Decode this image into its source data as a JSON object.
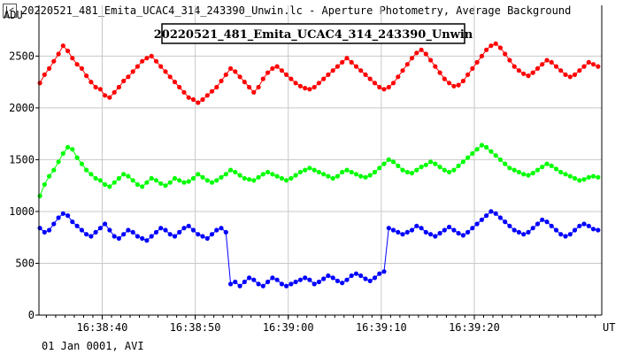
{
  "window": {
    "title": "20220521_481_Emita_UCAC4_314_243390_Unwin.lc - Aperture Photometry, Average Background"
  },
  "footer": {
    "text": "01 Jan 0001, AVI"
  },
  "chart_data": {
    "type": "line",
    "title": "20220521_481_Emita_UCAC4_314_243390_Unwin",
    "ylabel": "ADU",
    "xlabel": "UT",
    "ylim": [
      0,
      2990
    ],
    "y_ticks": [
      0,
      500,
      1000,
      1500,
      2000,
      2500
    ],
    "x_ticks": [
      "16:38:40",
      "16:38:50",
      "16:39:00",
      "16:39:10",
      "16:39:20"
    ],
    "x_ticks_sec": [
      40,
      50,
      60,
      70,
      80
    ],
    "xlim_sec": [
      33.2,
      93.7
    ],
    "grid": true,
    "colors": {
      "series1": "#ff0000",
      "series2": "#00ff00",
      "series3": "#0000ff",
      "grid": "#c8c8c8",
      "axis": "#000000"
    },
    "series": [
      {
        "color": "#ff0000",
        "x_start_sec": 33.3,
        "x_step_sec": 0.5,
        "values": [
          2240,
          2320,
          2380,
          2450,
          2520,
          2600,
          2550,
          2480,
          2420,
          2380,
          2310,
          2250,
          2200,
          2180,
          2120,
          2100,
          2150,
          2200,
          2260,
          2300,
          2350,
          2400,
          2450,
          2480,
          2500,
          2450,
          2400,
          2350,
          2300,
          2250,
          2200,
          2150,
          2100,
          2080,
          2050,
          2080,
          2120,
          2160,
          2200,
          2260,
          2320,
          2380,
          2350,
          2300,
          2250,
          2200,
          2150,
          2200,
          2280,
          2340,
          2380,
          2400,
          2360,
          2320,
          2280,
          2240,
          2210,
          2190,
          2180,
          2200,
          2240,
          2280,
          2320,
          2360,
          2400,
          2440,
          2480,
          2440,
          2400,
          2360,
          2320,
          2280,
          2240,
          2200,
          2180,
          2200,
          2240,
          2300,
          2360,
          2420,
          2480,
          2530,
          2560,
          2520,
          2460,
          2400,
          2340,
          2280,
          2240,
          2210,
          2220,
          2260,
          2320,
          2380,
          2440,
          2500,
          2560,
          2600,
          2620,
          2580,
          2520,
          2460,
          2400,
          2360,
          2330,
          2310,
          2340,
          2380,
          2420,
          2460,
          2440,
          2400,
          2360,
          2320,
          2300,
          2320,
          2360,
          2400,
          2440,
          2420,
          2400
        ]
      },
      {
        "color": "#00ff00",
        "x_start_sec": 33.3,
        "x_step_sec": 0.5,
        "values": [
          1150,
          1260,
          1340,
          1400,
          1480,
          1560,
          1620,
          1600,
          1520,
          1460,
          1400,
          1360,
          1320,
          1300,
          1260,
          1240,
          1280,
          1320,
          1360,
          1340,
          1300,
          1260,
          1240,
          1280,
          1320,
          1300,
          1270,
          1250,
          1280,
          1320,
          1300,
          1280,
          1290,
          1320,
          1360,
          1330,
          1300,
          1280,
          1300,
          1330,
          1360,
          1400,
          1380,
          1350,
          1320,
          1310,
          1300,
          1330,
          1360,
          1380,
          1360,
          1340,
          1320,
          1300,
          1320,
          1350,
          1380,
          1400,
          1420,
          1400,
          1380,
          1360,
          1340,
          1320,
          1340,
          1380,
          1400,
          1380,
          1360,
          1340,
          1330,
          1350,
          1380,
          1420,
          1460,
          1500,
          1480,
          1440,
          1400,
          1380,
          1370,
          1400,
          1430,
          1450,
          1480,
          1460,
          1430,
          1400,
          1380,
          1400,
          1440,
          1480,
          1520,
          1560,
          1600,
          1640,
          1620,
          1580,
          1540,
          1500,
          1460,
          1420,
          1400,
          1380,
          1360,
          1350,
          1370,
          1400,
          1430,
          1460,
          1440,
          1410,
          1380,
          1360,
          1340,
          1320,
          1300,
          1310,
          1330,
          1340,
          1330
        ]
      },
      {
        "color": "#0000ff",
        "x_start_sec": 33.3,
        "x_step_sec": 0.5,
        "values": [
          840,
          800,
          820,
          880,
          940,
          980,
          960,
          900,
          860,
          820,
          780,
          760,
          800,
          840,
          880,
          820,
          760,
          740,
          780,
          820,
          800,
          760,
          740,
          720,
          760,
          800,
          840,
          820,
          780,
          760,
          800,
          840,
          860,
          820,
          780,
          760,
          740,
          780,
          820,
          840,
          800,
          300,
          320,
          280,
          320,
          360,
          340,
          300,
          280,
          320,
          360,
          340,
          300,
          280,
          300,
          320,
          340,
          360,
          340,
          300,
          320,
          350,
          380,
          360,
          330,
          310,
          340,
          380,
          400,
          380,
          350,
          330,
          360,
          400,
          420,
          840,
          820,
          800,
          780,
          800,
          820,
          860,
          840,
          800,
          780,
          760,
          790,
          820,
          850,
          820,
          790,
          770,
          800,
          840,
          880,
          920,
          960,
          1000,
          980,
          940,
          900,
          860,
          820,
          800,
          780,
          800,
          840,
          880,
          920,
          900,
          860,
          820,
          780,
          760,
          780,
          820,
          860,
          880,
          860,
          830,
          820
        ]
      }
    ]
  }
}
